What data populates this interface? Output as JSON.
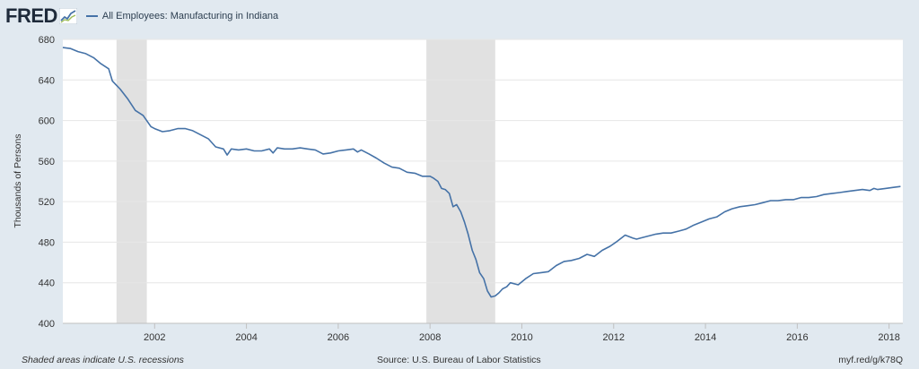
{
  "header": {
    "logo_text": "FRED",
    "logo_icon": "line-chart-icon"
  },
  "footer": {
    "recession_note": "Shaded areas indicate U.S. recessions",
    "source": "Source: U.S. Bureau of Labor Statistics",
    "short_url": "myf.red/g/k78Q"
  },
  "colors": {
    "background": "#e1e9f0",
    "plot_background": "#ffffff",
    "series_line": "#4572a7",
    "recession_band": "#e1e1e1",
    "grid_line": "#e6e6e6"
  },
  "chart_data": {
    "type": "line",
    "title": "",
    "xlabel": "",
    "ylabel": "Thousands of Persons",
    "xlim": [
      2000.0,
      2018.3
    ],
    "ylim": [
      400,
      680
    ],
    "yticks": [
      400,
      440,
      480,
      520,
      560,
      600,
      640,
      680
    ],
    "xticks": [
      2002,
      2004,
      2006,
      2008,
      2010,
      2012,
      2014,
      2016,
      2018
    ],
    "grid": "horizontal",
    "legend": "top-left",
    "recessions": [
      [
        2001.17,
        2001.83
      ],
      [
        2007.92,
        2009.42
      ]
    ],
    "series": [
      {
        "name": "All Employees: Manufacturing in Indiana",
        "x": [
          2000.0,
          2000.17,
          2000.33,
          2000.5,
          2000.67,
          2000.83,
          2001.0,
          2001.08,
          2001.25,
          2001.42,
          2001.58,
          2001.75,
          2001.92,
          2002.0,
          2002.17,
          2002.33,
          2002.5,
          2002.67,
          2002.83,
          2003.0,
          2003.17,
          2003.33,
          2003.5,
          2003.58,
          2003.67,
          2003.83,
          2004.0,
          2004.17,
          2004.33,
          2004.5,
          2004.58,
          2004.67,
          2004.83,
          2005.0,
          2005.17,
          2005.33,
          2005.5,
          2005.67,
          2005.83,
          2006.0,
          2006.17,
          2006.33,
          2006.42,
          2006.5,
          2006.67,
          2006.83,
          2007.0,
          2007.17,
          2007.33,
          2007.5,
          2007.67,
          2007.83,
          2008.0,
          2008.08,
          2008.17,
          2008.25,
          2008.33,
          2008.42,
          2008.5,
          2008.58,
          2008.67,
          2008.75,
          2008.83,
          2008.92,
          2009.0,
          2009.08,
          2009.17,
          2009.25,
          2009.33,
          2009.42,
          2009.5,
          2009.58,
          2009.67,
          2009.75,
          2009.92,
          2010.08,
          2010.25,
          2010.42,
          2010.58,
          2010.75,
          2010.92,
          2011.08,
          2011.25,
          2011.42,
          2011.58,
          2011.75,
          2011.92,
          2012.08,
          2012.25,
          2012.42,
          2012.5,
          2012.58,
          2012.75,
          2012.92,
          2013.08,
          2013.25,
          2013.42,
          2013.58,
          2013.75,
          2013.92,
          2014.08,
          2014.25,
          2014.42,
          2014.58,
          2014.75,
          2014.92,
          2015.08,
          2015.25,
          2015.42,
          2015.58,
          2015.75,
          2015.92,
          2016.08,
          2016.25,
          2016.42,
          2016.58,
          2016.75,
          2016.92,
          2017.08,
          2017.25,
          2017.42,
          2017.58,
          2017.67,
          2017.75,
          2017.92,
          2018.08,
          2018.25
        ],
        "values": [
          672,
          671,
          668,
          666,
          662,
          656,
          651,
          639,
          631,
          621,
          610,
          605,
          594,
          592,
          589,
          590,
          592,
          592,
          590,
          586,
          582,
          574,
          572,
          566,
          572,
          571,
          572,
          570,
          570,
          572,
          568,
          573,
          572,
          572,
          573,
          572,
          571,
          567,
          568,
          570,
          571,
          572,
          569,
          571,
          567,
          563,
          558,
          554,
          553,
          549,
          548,
          545,
          545,
          543,
          540,
          533,
          532,
          528,
          515,
          517,
          510,
          500,
          488,
          472,
          463,
          450,
          444,
          432,
          426,
          427,
          430,
          434,
          436,
          440,
          438,
          444,
          449,
          450,
          451,
          457,
          461,
          462,
          464,
          468,
          466,
          472,
          476,
          481,
          487,
          484,
          483,
          484,
          486,
          488,
          489,
          489,
          491,
          493,
          497,
          500,
          503,
          505,
          510,
          513,
          515,
          516,
          517,
          519,
          521,
          521,
          522,
          522,
          524,
          524,
          525,
          527,
          528,
          529,
          530,
          531,
          532,
          531,
          533,
          532,
          533,
          534,
          535
        ]
      }
    ]
  }
}
